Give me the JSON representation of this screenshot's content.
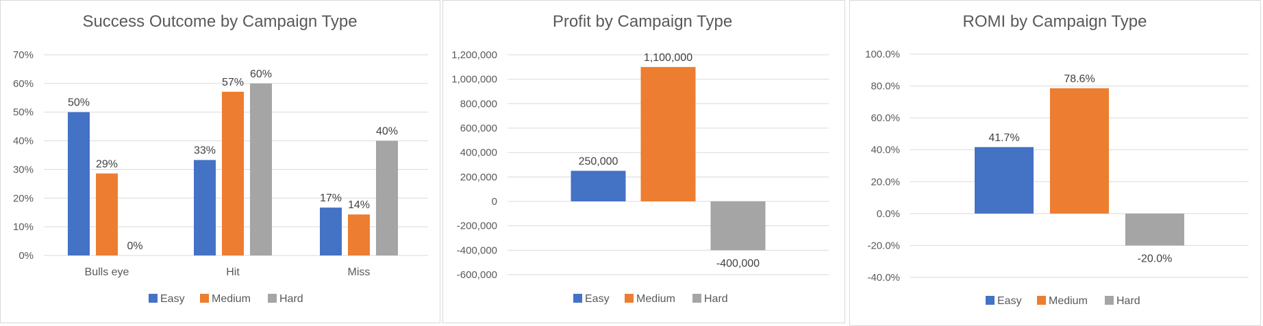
{
  "colors": {
    "Easy": "#4472C4",
    "Medium": "#ED7D31",
    "Hard": "#A5A5A5",
    "grid": "#D9D9D9",
    "text": "#595959"
  },
  "chart_data": [
    {
      "type": "bar",
      "title": "Success Outcome by Campaign Type",
      "categories": [
        "Bulls eye",
        "Hit",
        "Miss"
      ],
      "series": [
        {
          "name": "Easy",
          "values": [
            0.5,
            0.333,
            0.167
          ],
          "labels": [
            "50%",
            "33%",
            "17%"
          ]
        },
        {
          "name": "Medium",
          "values": [
            0.286,
            0.571,
            0.143
          ],
          "labels": [
            "29%",
            "57%",
            "14%"
          ]
        },
        {
          "name": "Hard",
          "values": [
            0.0,
            0.6,
            0.4
          ],
          "labels": [
            "0%",
            "60%",
            "40%"
          ]
        }
      ],
      "ylim": [
        0,
        0.7
      ],
      "yticks": [
        0,
        0.1,
        0.2,
        0.3,
        0.4,
        0.5,
        0.6,
        0.7
      ],
      "ytick_labels": [
        "0%",
        "10%",
        "20%",
        "30%",
        "40%",
        "50%",
        "60%",
        "70%"
      ],
      "legend": [
        "Easy",
        "Medium",
        "Hard"
      ],
      "legend_position": "bottom",
      "grid": true
    },
    {
      "type": "bar",
      "title": "Profit by Campaign Type",
      "categories": [
        ""
      ],
      "series": [
        {
          "name": "Easy",
          "values": [
            250000
          ],
          "labels": [
            "250,000"
          ]
        },
        {
          "name": "Medium",
          "values": [
            1100000
          ],
          "labels": [
            "1,100,000"
          ]
        },
        {
          "name": "Hard",
          "values": [
            -400000
          ],
          "labels": [
            "-400,000"
          ]
        }
      ],
      "ylim": [
        -600000,
        1200000
      ],
      "yticks": [
        -600000,
        -400000,
        -200000,
        0,
        200000,
        400000,
        600000,
        800000,
        1000000,
        1200000
      ],
      "ytick_labels": [
        "-600,000",
        "-400,000",
        "-200,000",
        "0",
        "200,000",
        "400,000",
        "600,000",
        "800,000",
        "1,000,000",
        "1,200,000"
      ],
      "legend": [
        "Easy",
        "Medium",
        "Hard"
      ],
      "legend_position": "bottom",
      "grid": true
    },
    {
      "type": "bar",
      "title": "ROMI by Campaign Type",
      "categories": [
        ""
      ],
      "series": [
        {
          "name": "Easy",
          "values": [
            0.417
          ],
          "labels": [
            "41.7%"
          ]
        },
        {
          "name": "Medium",
          "values": [
            0.786
          ],
          "labels": [
            "78.6%"
          ]
        },
        {
          "name": "Hard",
          "values": [
            -0.2
          ],
          "labels": [
            "-20.0%"
          ]
        }
      ],
      "ylim": [
        -0.4,
        1.0
      ],
      "yticks": [
        -0.4,
        -0.2,
        0,
        0.2,
        0.4,
        0.6,
        0.8,
        1.0
      ],
      "ytick_labels": [
        "-40.0%",
        "-20.0%",
        "0.0%",
        "20.0%",
        "40.0%",
        "60.0%",
        "80.0%",
        "100.0%"
      ],
      "legend": [
        "Easy",
        "Medium",
        "Hard"
      ],
      "legend_position": "bottom",
      "grid": true
    }
  ]
}
